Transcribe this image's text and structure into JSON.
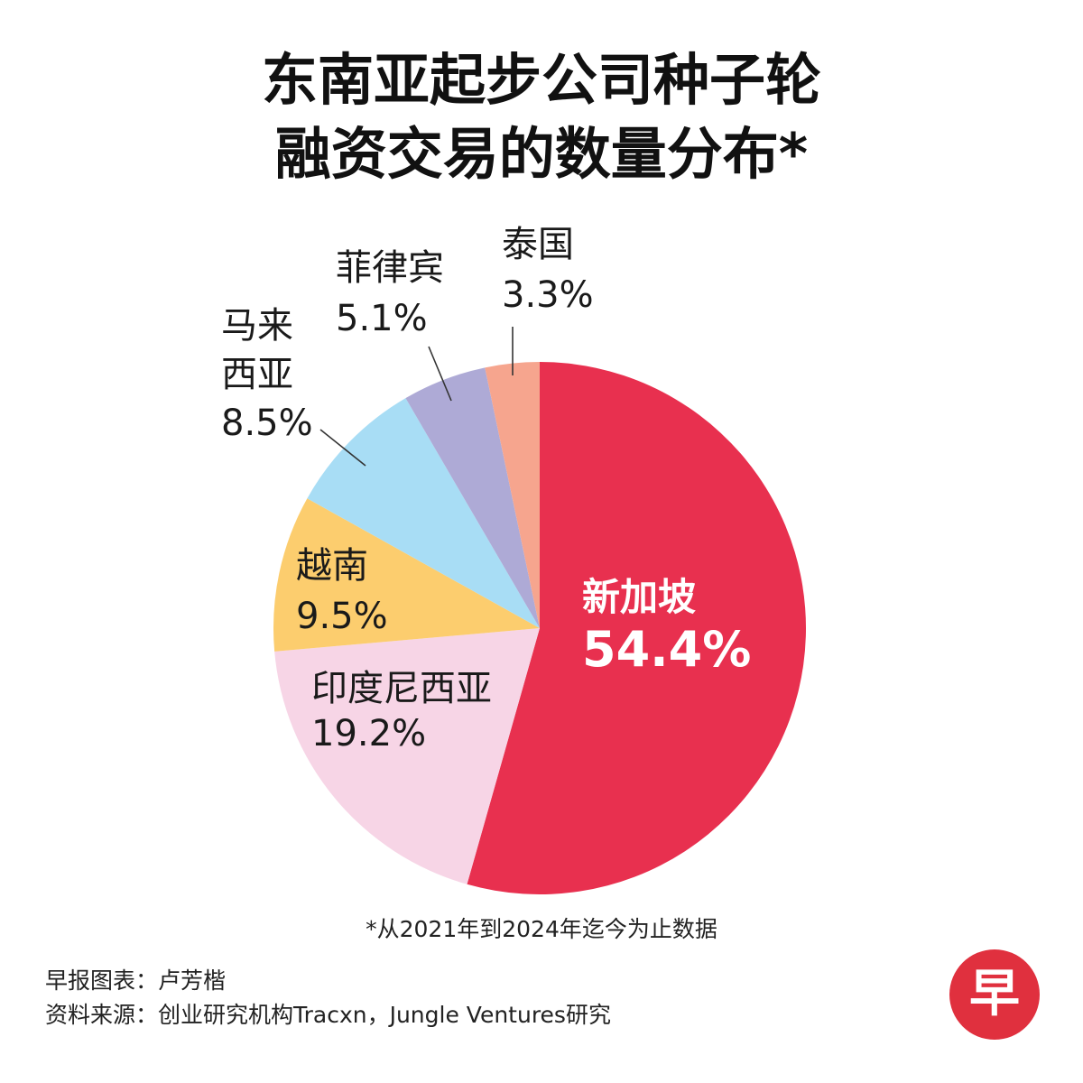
{
  "title": {
    "line1": "东南亚起步公司种子轮",
    "line2": "融资交易的数量分布*"
  },
  "chart_data": {
    "type": "pie",
    "slices": [
      {
        "label": "新加坡",
        "value": 54.4,
        "value_label": "54.4%",
        "color": "#e8304f"
      },
      {
        "label": "印度尼西亚",
        "value": 19.2,
        "value_label": "19.2%",
        "color": "#f7d5e6"
      },
      {
        "label": "越南",
        "value": 9.5,
        "value_label": "9.5%",
        "color": "#fccd6e"
      },
      {
        "label": "马来西亚",
        "value": 8.5,
        "value_label": "8.5%",
        "color": "#a8ddf5"
      },
      {
        "label": "菲律宾",
        "value": 5.1,
        "value_label": "5.1%",
        "color": "#aeaad6"
      },
      {
        "label": "泰国",
        "value": 3.3,
        "value_label": "3.3%",
        "color": "#f6a58e"
      }
    ]
  },
  "footnote": "*从2021年到2024年迄今为止数据",
  "credits": {
    "line1": "早报图表：卢芳楷",
    "line2": "资料来源：创业研究机构Tracxn，Jungle Ventures研究"
  },
  "logo": {
    "text": "早",
    "color": "#e0303e"
  }
}
